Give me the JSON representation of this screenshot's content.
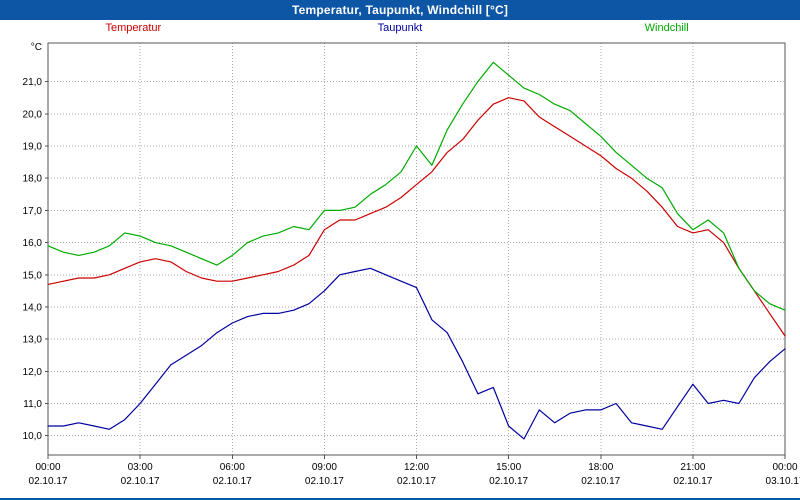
{
  "window": {
    "title": "Temperatur, Taupunkt, Windchill [°C]"
  },
  "colors": {
    "titlebar_bg": "#0d55a5",
    "titlebar_text": "#ffffff",
    "plot_border": "#555555",
    "grid": "#aaaaaa",
    "tick_text": "#000000"
  },
  "chart_data": {
    "type": "line",
    "title": "Temperatur, Taupunkt, Windchill [°C]",
    "xlabel": "",
    "ylabel": "°C",
    "grid": true,
    "legend_position": "top",
    "ylim": [
      9.4,
      22.2
    ],
    "yticks": [
      10,
      11,
      12,
      13,
      14,
      15,
      16,
      17,
      18,
      19,
      20,
      21
    ],
    "ytick_labels": [
      "10,0",
      "11,0",
      "12,0",
      "13,0",
      "14,0",
      "15,0",
      "16,0",
      "17,0",
      "18,0",
      "19,0",
      "20,0",
      "21,0"
    ],
    "xticks": [
      0,
      3,
      6,
      9,
      12,
      15,
      18,
      21,
      24
    ],
    "xtick_labels": [
      {
        "time": "00:00",
        "date": "02.10.17"
      },
      {
        "time": "03:00",
        "date": "02.10.17"
      },
      {
        "time": "06:00",
        "date": "02.10.17"
      },
      {
        "time": "09:00",
        "date": "02.10.17"
      },
      {
        "time": "12:00",
        "date": "02.10.17"
      },
      {
        "time": "15:00",
        "date": "02.10.17"
      },
      {
        "time": "18:00",
        "date": "02.10.17"
      },
      {
        "time": "21:00",
        "date": "02.10.17"
      },
      {
        "time": "00:00",
        "date": "03.10.17"
      }
    ],
    "x": [
      0,
      0.5,
      1,
      1.5,
      2,
      2.5,
      3,
      3.5,
      4,
      4.5,
      5,
      5.5,
      6,
      6.5,
      7,
      7.5,
      8,
      8.5,
      9,
      9.5,
      10,
      10.5,
      11,
      11.5,
      12,
      12.5,
      13,
      13.5,
      14,
      14.5,
      15,
      15.5,
      16,
      16.5,
      17,
      17.5,
      18,
      18.5,
      19,
      19.5,
      20,
      20.5,
      21,
      21.5,
      22,
      22.5,
      23,
      23.5,
      24
    ],
    "series": [
      {
        "name": "Temperatur",
        "color": "#cc0000",
        "values": [
          14.7,
          14.8,
          14.9,
          14.9,
          15.0,
          15.2,
          15.4,
          15.5,
          15.4,
          15.1,
          14.9,
          14.8,
          14.8,
          14.9,
          15.0,
          15.1,
          15.3,
          15.6,
          16.4,
          16.7,
          16.7,
          16.9,
          17.1,
          17.4,
          17.8,
          18.2,
          18.8,
          19.2,
          19.8,
          20.3,
          20.5,
          20.4,
          19.9,
          19.6,
          19.3,
          19.0,
          18.7,
          18.3,
          18.0,
          17.6,
          17.1,
          16.5,
          16.3,
          16.4,
          16.0,
          15.2,
          14.5,
          13.8,
          13.1
        ]
      },
      {
        "name": "Taupunkt",
        "color": "#0000a0",
        "values": [
          10.3,
          10.3,
          10.4,
          10.3,
          10.2,
          10.5,
          11.0,
          11.6,
          12.2,
          12.5,
          12.8,
          13.2,
          13.5,
          13.7,
          13.8,
          13.8,
          13.9,
          14.1,
          14.5,
          15.0,
          15.1,
          15.2,
          15.0,
          14.8,
          14.6,
          13.6,
          13.2,
          12.3,
          11.3,
          11.5,
          10.3,
          9.9,
          10.8,
          10.4,
          10.7,
          10.8,
          10.8,
          11.0,
          10.4,
          10.3,
          10.2,
          10.9,
          11.6,
          11.0,
          11.1,
          11.0,
          11.8,
          12.3,
          12.7
        ]
      },
      {
        "name": "Windchill",
        "color": "#00aa00",
        "values": [
          15.9,
          15.7,
          15.6,
          15.7,
          15.9,
          16.3,
          16.2,
          16.0,
          15.9,
          15.7,
          15.5,
          15.3,
          15.6,
          16.0,
          16.2,
          16.3,
          16.5,
          16.4,
          17.0,
          17.0,
          17.1,
          17.5,
          17.8,
          18.2,
          19.0,
          18.4,
          19.5,
          20.3,
          21.0,
          21.6,
          21.2,
          20.8,
          20.6,
          20.3,
          20.1,
          19.7,
          19.3,
          18.8,
          18.4,
          18.0,
          17.7,
          16.9,
          16.4,
          16.7,
          16.3,
          15.2,
          14.5,
          14.1,
          13.9
        ]
      }
    ]
  }
}
